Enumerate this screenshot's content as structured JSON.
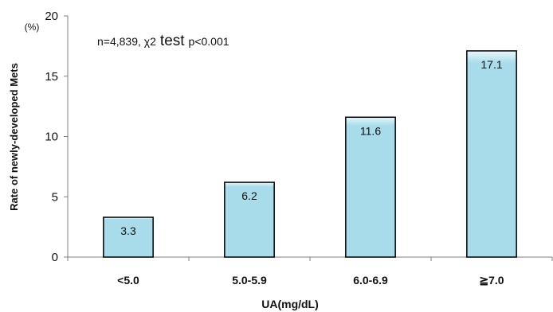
{
  "chart_data": {
    "type": "bar",
    "categories": [
      "<5.0",
      "5.0-5.9",
      "6.0-6.9",
      "≧7.0"
    ],
    "values": [
      3.3,
      6.2,
      11.6,
      17.1
    ],
    "data_labels": [
      "3.3",
      "6.2",
      "11.6",
      "17.1"
    ],
    "title": "",
    "xlabel": "UA",
    "xlabel_unit": "(mg/dL)",
    "ylabel": "Rate of newly-developed Mets",
    "ylabel_unit": "(%)",
    "ylim": [
      0,
      20
    ],
    "yticks": [
      0,
      5,
      10,
      15,
      20
    ],
    "grid": false,
    "annotation": {
      "prefix": "n=4,839, χ2",
      "test_word": "test",
      "suffix": "p<0.001"
    },
    "colors": {
      "bar_fill": "#a8dcea",
      "bar_highlight": "#e8f7fb",
      "bar_stroke": "#000000",
      "axis": "#7f7f7f"
    }
  }
}
